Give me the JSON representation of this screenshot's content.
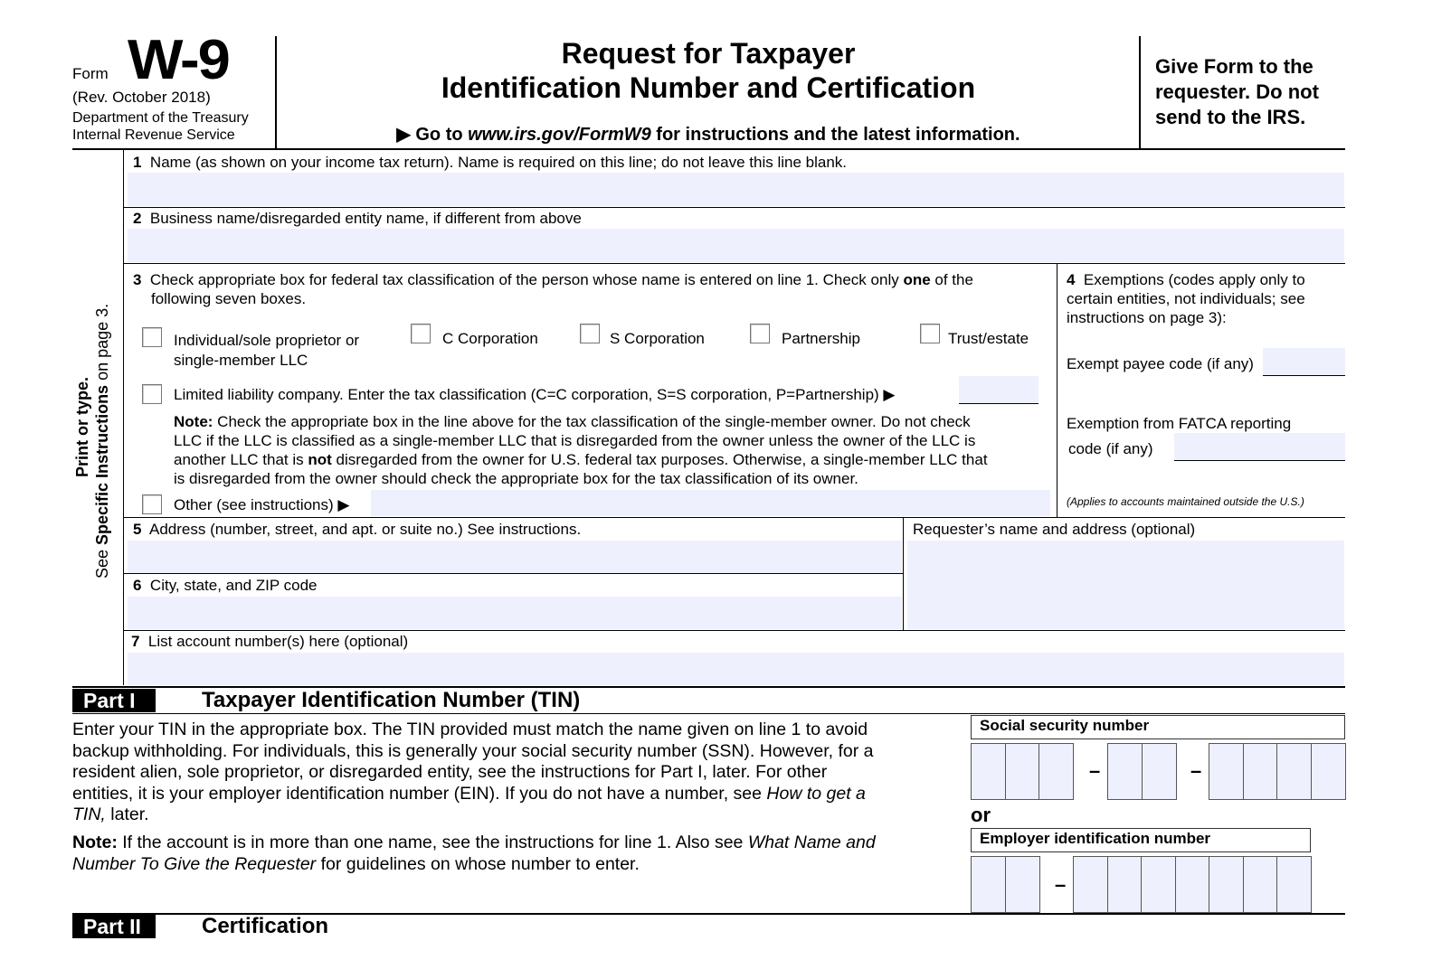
{
  "header": {
    "form_label": "Form",
    "form_number": "W-9",
    "revision": "(Rev. October 2018)",
    "department": "Department of the Treasury",
    "agency": "Internal Revenue Service",
    "title_line1": "Request for Taxpayer",
    "title_line2": "Identification Number and Certification",
    "goto_prefix": "▶ Go to ",
    "goto_url": "www.irs.gov/FormW9",
    "goto_suffix": " for instructions and the latest information.",
    "give_form_line1": "Give Form to the",
    "give_form_line2": "requester. Do not",
    "give_form_line3": "send to the IRS."
  },
  "side": {
    "print": "Print or type.",
    "see": "See ",
    "specific": "Specific Instructions",
    "on_page": " on page 3."
  },
  "line1": {
    "num": "1",
    "label": "Name (as shown on your income tax return). Name is required on this line; do not leave this line blank.",
    "value": ""
  },
  "line2": {
    "num": "2",
    "label": "Business name/disregarded entity name, if different from above",
    "value": ""
  },
  "line3": {
    "num": "3",
    "label_a": "Check appropriate box for federal tax classification of the person whose name is entered on line 1. Check only ",
    "label_one": "one",
    "label_b": " of the",
    "label_line2": "following seven boxes.",
    "options": [
      {
        "label": "Individual/sole proprietor or",
        "label2": "single-member LLC",
        "checked": false
      },
      {
        "label": "C Corporation",
        "checked": false
      },
      {
        "label": "S Corporation",
        "checked": false
      },
      {
        "label": "Partnership",
        "checked": false
      },
      {
        "label": "Trust/estate",
        "checked": false
      }
    ],
    "llc_label": "Limited liability company. Enter the tax classification (C=C corporation, S=S corporation, P=Partnership) ▶",
    "llc_checked": false,
    "llc_value": "",
    "note_label": "Note:",
    "note_1": " Check the appropriate box in the line above for the tax classification of the single-member owner.  Do not check",
    "note_2": "LLC if the LLC is classified as a single-member LLC that is disregarded from the owner unless the owner of the LLC is",
    "note_3a": "another LLC that is ",
    "note_3b": "not",
    "note_3c": " disregarded from the owner for U.S. federal tax purposes. Otherwise, a single-member LLC that",
    "note_4": "is disregarded from the owner should check the appropriate box for the tax classification of its owner.",
    "other_label": "Other (see instructions) ▶",
    "other_checked": false,
    "other_value": ""
  },
  "line4": {
    "num": "4",
    "label1": "Exemptions (codes apply only to",
    "label2": "certain entities, not individuals; see",
    "label3": "instructions on page 3):",
    "exempt_payee": "Exempt payee code (if any)",
    "exempt_payee_value": "",
    "fatca1": "Exemption from FATCA reporting",
    "fatca2": "code (if any)",
    "fatca_value": "",
    "applies": "(Applies to accounts maintained outside the U.S.)"
  },
  "line5": {
    "num": "5",
    "label": "Address (number, street, and apt. or suite no.) See instructions.",
    "value": ""
  },
  "requester": {
    "label": "Requester’s name and address (optional)",
    "value": ""
  },
  "line6": {
    "num": "6",
    "label": "City, state, and ZIP code",
    "value": ""
  },
  "line7": {
    "num": "7",
    "label": "List account number(s) here (optional)",
    "value": ""
  },
  "part1": {
    "tag": "Part I",
    "title": "Taxpayer Identification Number (TIN)",
    "p1": "Enter your TIN in the appropriate box. The TIN provided must match the name given on line 1 to avoid",
    "p2": "backup withholding. For individuals, this is generally your social security number (SSN). However, for a",
    "p3": "resident alien, sole proprietor, or disregarded entity, see the instructions for Part I, later. For other",
    "p4a": "entities, it is your employer identification number (EIN). If you do not have a number, see ",
    "p4b": "How to get a",
    "p5a": "TIN,",
    "p5b": " later.",
    "note_label": "Note:",
    "n1a": " If the account is in more than one name, see the instructions for line 1. Also see ",
    "n1b": "What Name and",
    "n2a": "Number To Give the Requester",
    "n2b": " for guidelines on whose number to enter.",
    "ssn_label": "Social security number",
    "or": "or",
    "ein_label": "Employer identification number",
    "dash": "–"
  },
  "part2": {
    "tag": "Part II",
    "title": "Certification"
  },
  "colors": {
    "field_fill": "#eef1fd",
    "rule": "#000000"
  }
}
